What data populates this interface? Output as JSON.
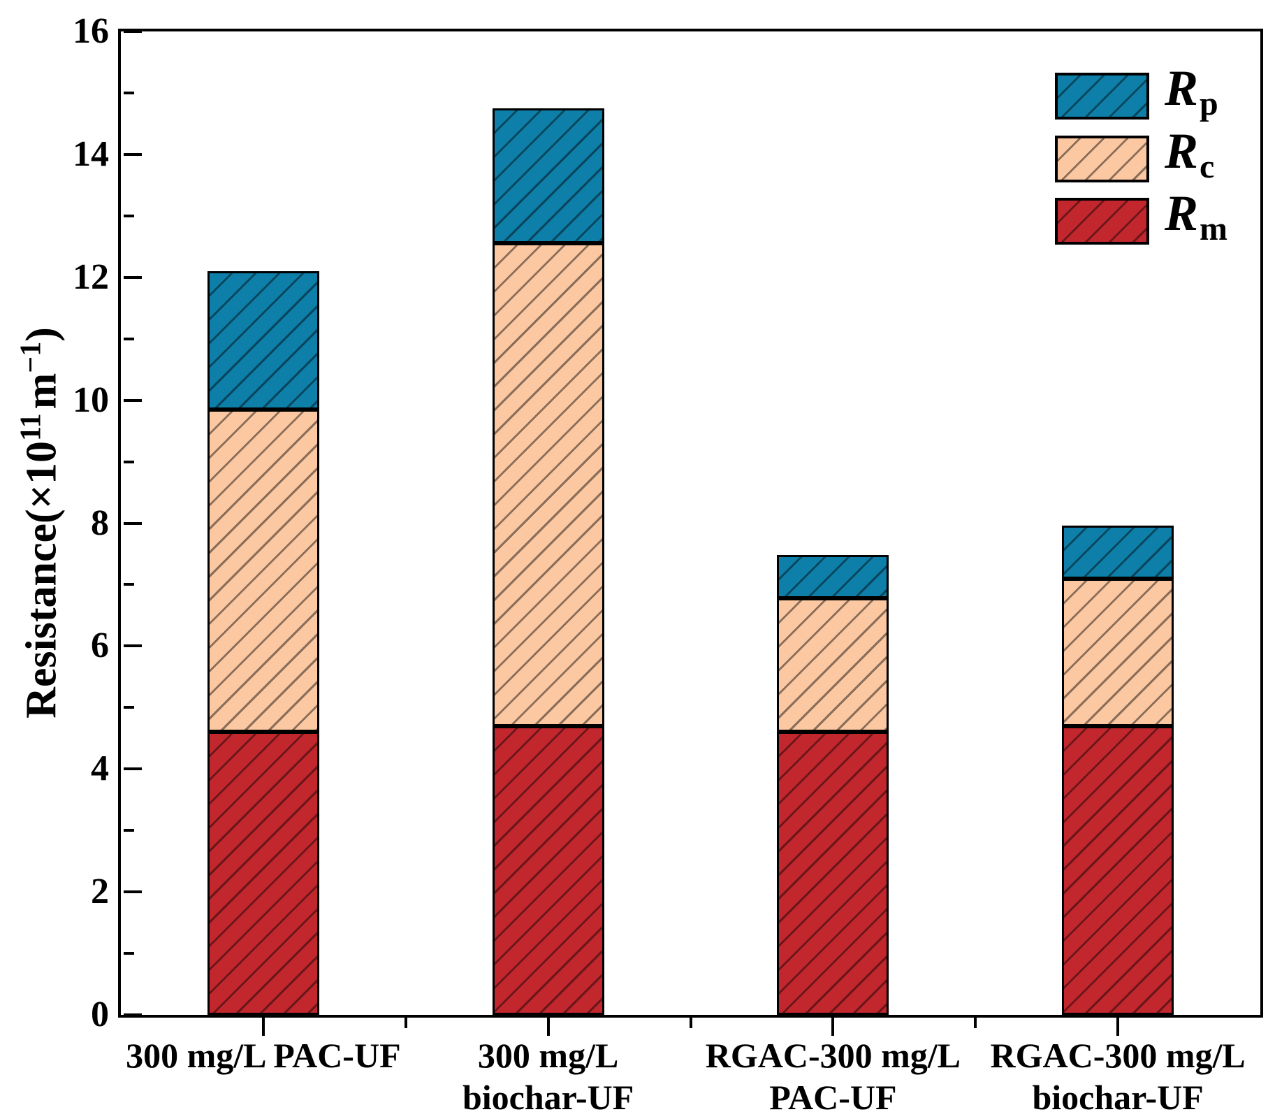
{
  "figure": {
    "background": "#FFFFFF",
    "axis_color": "#000000",
    "hatch_style": "forward-diagonal"
  },
  "chart_data": {
    "type": "bar",
    "stacked": true,
    "grid": false,
    "legend_position": "top-right",
    "ylabel_parts": {
      "prefix": "Resistance(×10",
      "sup1": "11",
      "mid": "m",
      "sup2": "−1",
      "suffix": ")"
    },
    "ylim": [
      0,
      16
    ],
    "ytick_major_step": 2,
    "ytick_minor_step": 1,
    "ytick_labels": [
      "0",
      "2",
      "4",
      "6",
      "8",
      "10",
      "12",
      "14",
      "16"
    ],
    "categories": [
      {
        "lines": [
          "300 mg/L PAC-UF"
        ]
      },
      {
        "lines": [
          "300 mg/L",
          "biochar-UF"
        ]
      },
      {
        "lines": [
          "RGAC-300 mg/L",
          "PAC-UF"
        ]
      },
      {
        "lines": [
          "RGAC-300 mg/L",
          "biochar-UF"
        ]
      }
    ],
    "series": [
      {
        "name": "Rm",
        "label_main": "R",
        "label_sub": "m",
        "color": "#C2272E",
        "values": [
          4.6,
          4.7,
          4.6,
          4.7
        ]
      },
      {
        "name": "Rc",
        "label_main": "R",
        "label_sub": "c",
        "color": "#FCC8A2",
        "values": [
          5.25,
          7.85,
          2.18,
          2.4
        ]
      },
      {
        "name": "Rp",
        "label_main": "R",
        "label_sub": "p",
        "color": "#0D7FA8",
        "values": [
          2.25,
          2.2,
          0.7,
          0.86
        ]
      }
    ],
    "stack_order_bottom_to_top": [
      "Rm",
      "Rc",
      "Rp"
    ],
    "totals": [
      12.1,
      14.75,
      7.48,
      7.96
    ],
    "legend_order_top_to_bottom": [
      "Rp",
      "Rc",
      "Rm"
    ]
  }
}
